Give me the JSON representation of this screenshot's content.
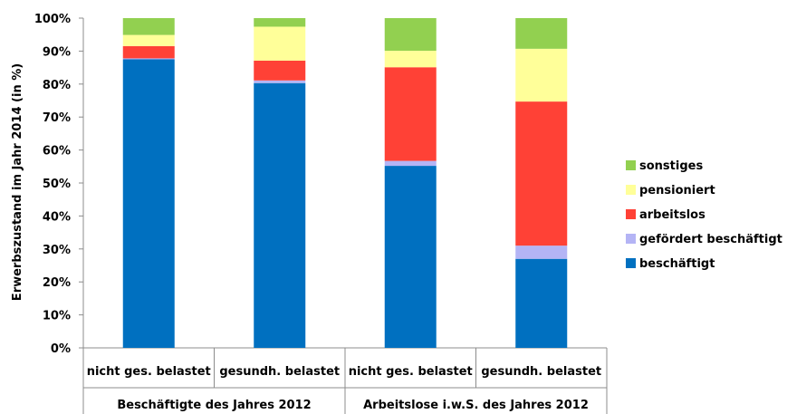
{
  "chart_data": {
    "type": "bar",
    "stacked": true,
    "ylabel": "Erwerbszustand im Jahr 2014 (in %)",
    "ylim": [
      0,
      100
    ],
    "yticks": [
      "0%",
      "10%",
      "20%",
      "30%",
      "40%",
      "50%",
      "60%",
      "70%",
      "80%",
      "90%",
      "100%"
    ],
    "categories": [
      "nicht ges. belastet",
      "gesundh. belastet",
      "nicht ges. belastet",
      "gesundh. belastet"
    ],
    "groups": [
      {
        "label": "Beschäftigte des Jahres 2012",
        "categories": [
          0,
          1
        ]
      },
      {
        "label": "Arbeitslose i.w.S. des Jahres 2012",
        "categories": [
          2,
          3
        ]
      }
    ],
    "series": [
      {
        "name": "beschäftigt",
        "color": "#0070C0",
        "values": [
          87.5,
          80.3,
          55.2,
          27.0
        ]
      },
      {
        "name": "gefördert beschäftigt",
        "color": "#B4B4F5",
        "values": [
          0.3,
          0.8,
          1.5,
          4.0
        ]
      },
      {
        "name": "arbeitslos",
        "color": "#FF4136",
        "values": [
          3.7,
          6.0,
          28.4,
          43.7
        ]
      },
      {
        "name": "pensioniert",
        "color": "#FFFF99",
        "values": [
          3.4,
          10.3,
          5.0,
          16.0
        ]
      },
      {
        "name": "sonstiges",
        "color": "#92D050",
        "values": [
          5.1,
          2.6,
          9.9,
          9.3
        ]
      }
    ],
    "legend_position": "right",
    "grid": false
  }
}
